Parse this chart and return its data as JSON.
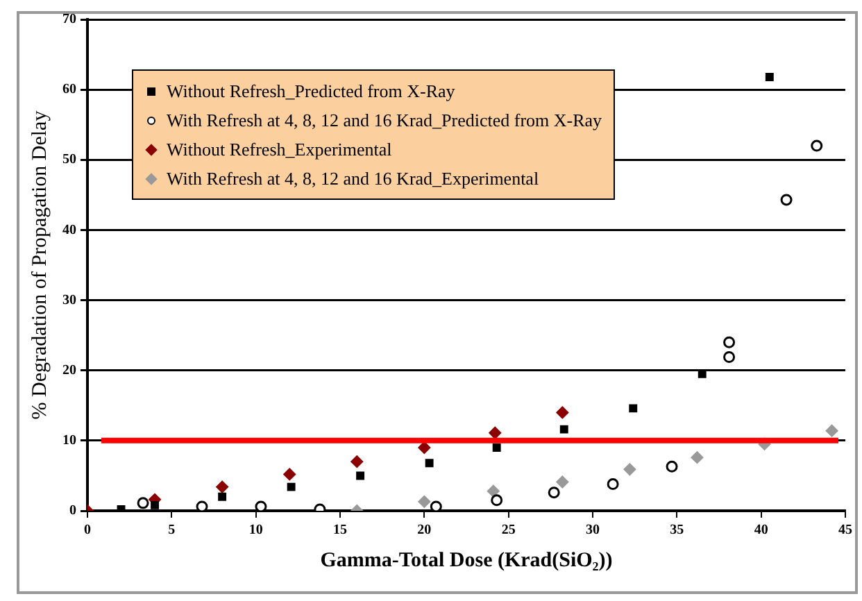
{
  "chart_data": {
    "type": "scatter",
    "xlabel": "Gamma-Total Dose (Krad(SiO₂))",
    "ylabel": "% Degradation of Propagation Delay",
    "xlim": [
      0,
      45
    ],
    "xticks": [
      0,
      5,
      10,
      15,
      20,
      25,
      30,
      35,
      40,
      45
    ],
    "ylim": [
      0,
      70
    ],
    "yticks": [
      0,
      10,
      20,
      30,
      40,
      50,
      60,
      70
    ],
    "grid": "y",
    "legend": "top left",
    "series": [
      {
        "name": "Without Refresh_Predicted from X-Ray",
        "color": "#000000",
        "marker": "square",
        "x": [
          2.0,
          4.0,
          8.0,
          12.1,
          16.2,
          20.3,
          24.3,
          28.3,
          32.4,
          36.5,
          40.5
        ],
        "values": [
          0.2,
          0.8,
          2.0,
          3.4,
          5.0,
          6.8,
          9.0,
          11.6,
          14.6,
          19.5,
          61.8
        ]
      },
      {
        "name": "With Refresh at 4, 8, 12 and 16 Krad_Predicted  from X-Ray",
        "color": "#000000",
        "marker": "circle",
        "x": [
          3.3,
          6.8,
          10.3,
          13.8,
          20.7,
          24.3,
          27.7,
          31.2,
          34.7,
          38.1,
          38.1,
          41.5,
          43.3
        ],
        "values": [
          1.1,
          0.6,
          0.6,
          0.2,
          0.6,
          1.5,
          2.6,
          3.8,
          6.3,
          21.9,
          24.0,
          44.3,
          52.0
        ]
      },
      {
        "name": "Without Refresh_Experimental",
        "color": "#8b0000",
        "marker": "diamond",
        "x": [
          0,
          4.0,
          8.0,
          12.0,
          16.0,
          20.0,
          24.2,
          28.2
        ],
        "values": [
          0,
          1.6,
          3.4,
          5.2,
          7.0,
          9.0,
          11.1,
          14.0
        ]
      },
      {
        "name": "With Refresh at 4, 8, 12 and 16 Krad_Experimental",
        "color": "#999999",
        "marker": "diamond",
        "x": [
          16.0,
          20.0,
          24.1,
          28.2,
          32.2,
          36.2,
          40.2,
          44.2
        ],
        "values": [
          0,
          1.3,
          2.8,
          4.1,
          5.9,
          7.6,
          9.5,
          11.4
        ]
      }
    ],
    "ref_lines": [
      {
        "axis": "y",
        "value": 10,
        "color": "#ff0000"
      }
    ]
  }
}
